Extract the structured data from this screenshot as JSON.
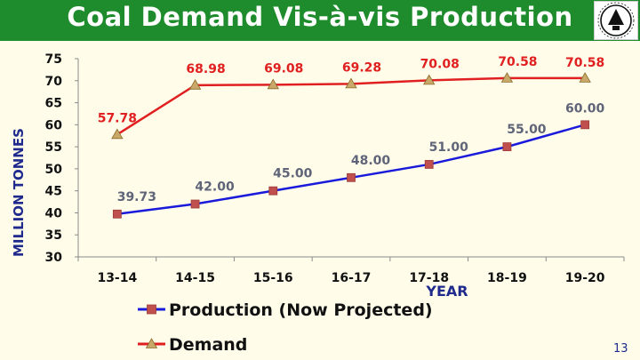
{
  "slide": {
    "title": "Coal Demand Vis-à-vis Production",
    "page_number": "13",
    "colors": {
      "title_bar": "#1e8c2c",
      "title_text": "#ffffff",
      "background": "#fffdea"
    },
    "logo_icon": "coal-india-logo-icon"
  },
  "chart_data": {
    "type": "line",
    "title": "",
    "xlabel": "YEAR",
    "ylabel": "MILLION TONNES",
    "categories": [
      "13-14",
      "14-15",
      "15-16",
      "16-17",
      "17-18",
      "18-19",
      "19-20"
    ],
    "ylim": [
      30,
      75
    ],
    "yticks": [
      30,
      35,
      40,
      45,
      50,
      55,
      60,
      65,
      70,
      75
    ],
    "grid": false,
    "legend_position": "bottom",
    "series": [
      {
        "name": "Production (Now Projected)",
        "values": [
          39.73,
          42.0,
          45.0,
          48.0,
          51.0,
          55.0,
          60.0
        ],
        "labels": [
          "39.73",
          "42.00",
          "45.00",
          "48.00",
          "51.00",
          "55.00",
          "60.00"
        ],
        "line_color": "#1a1adb",
        "marker": "square",
        "marker_color": "#c0504d",
        "label_color": "#5f6478"
      },
      {
        "name": "Demand",
        "values": [
          57.78,
          68.98,
          69.08,
          69.28,
          70.08,
          70.58,
          70.58
        ],
        "labels": [
          "57.78",
          "68.98",
          "69.08",
          "69.28",
          "70.08",
          "70.58",
          "70.58"
        ],
        "line_color": "#e02020",
        "marker": "triangle",
        "marker_color": "#c9a96a",
        "label_color": "#e02020"
      }
    ]
  }
}
